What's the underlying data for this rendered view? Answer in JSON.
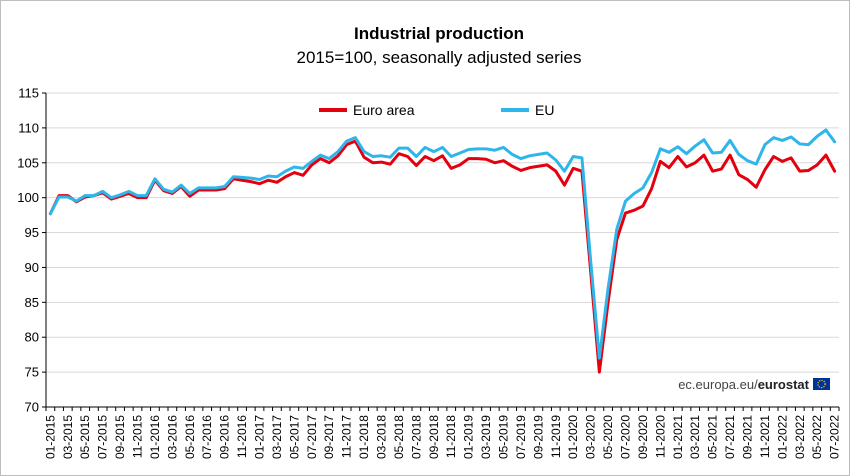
{
  "chart_data": {
    "type": "line",
    "title": "Industrial production",
    "subtitle": "2015=100, seasonally adjusted series",
    "ylim": [
      70,
      115
    ],
    "yticks": [
      70,
      75,
      80,
      85,
      90,
      95,
      100,
      105,
      110,
      115
    ],
    "grid": true,
    "legend": "top-center",
    "credit_prefix": "ec.europa.eu/",
    "credit_brand": "eurostat",
    "x": [
      "01-2015",
      "02-2015",
      "03-2015",
      "04-2015",
      "05-2015",
      "06-2015",
      "07-2015",
      "08-2015",
      "09-2015",
      "10-2015",
      "11-2015",
      "12-2015",
      "01-2016",
      "02-2016",
      "03-2016",
      "04-2016",
      "05-2016",
      "06-2016",
      "07-2016",
      "08-2016",
      "09-2016",
      "10-2016",
      "11-2016",
      "12-2016",
      "01-2017",
      "02-2017",
      "03-2017",
      "04-2017",
      "05-2017",
      "06-2017",
      "07-2017",
      "08-2017",
      "09-2017",
      "10-2017",
      "11-2017",
      "12-2017",
      "01-2018",
      "02-2018",
      "03-2018",
      "04-2018",
      "05-2018",
      "06-2018",
      "07-2018",
      "08-2018",
      "09-2018",
      "10-2018",
      "11-2018",
      "12-2018",
      "01-2019",
      "02-2019",
      "03-2019",
      "04-2019",
      "05-2019",
      "06-2019",
      "07-2019",
      "08-2019",
      "09-2019",
      "10-2019",
      "11-2019",
      "12-2019",
      "01-2020",
      "02-2020",
      "03-2020",
      "04-2020",
      "05-2020",
      "06-2020",
      "07-2020",
      "08-2020",
      "09-2020",
      "10-2020",
      "11-2020",
      "12-2020",
      "01-2021",
      "02-2021",
      "03-2021",
      "04-2021",
      "05-2021",
      "06-2021",
      "07-2021",
      "08-2021",
      "09-2021",
      "10-2021",
      "11-2021",
      "12-2021",
      "01-2022",
      "02-2022",
      "03-2022",
      "04-2022",
      "05-2022",
      "06-2022",
      "07-2022"
    ],
    "xticks": [
      "01-2015",
      "03-2015",
      "05-2015",
      "07-2015",
      "09-2015",
      "11-2015",
      "01-2016",
      "03-2016",
      "05-2016",
      "07-2016",
      "09-2016",
      "11-2016",
      "01-2017",
      "03-2017",
      "05-2017",
      "07-2017",
      "09-2017",
      "11-2017",
      "01-2018",
      "03-2018",
      "05-2018",
      "07-2018",
      "09-2018",
      "11-2018",
      "01-2019",
      "03-2019",
      "05-2019",
      "07-2019",
      "09-2019",
      "11-2019",
      "01-2020",
      "03-2020",
      "05-2020",
      "07-2020",
      "09-2020",
      "11-2020",
      "01-2021",
      "03-2021",
      "05-2021",
      "07-2021",
      "09-2021",
      "11-2021",
      "01-2022",
      "03-2022",
      "05-2022",
      "07-2022"
    ],
    "series": [
      {
        "name": "Euro area",
        "color": "#e3000f",
        "values": [
          97.7,
          100.3,
          100.3,
          99.4,
          100.1,
          100.3,
          100.7,
          99.8,
          100.2,
          100.6,
          100.0,
          100.0,
          102.5,
          101.0,
          100.6,
          101.6,
          100.2,
          101.1,
          101.1,
          101.1,
          101.3,
          102.7,
          102.5,
          102.3,
          102.0,
          102.5,
          102.2,
          103.0,
          103.6,
          103.2,
          104.7,
          105.6,
          105.0,
          106.0,
          107.6,
          108.1,
          105.8,
          105.0,
          105.1,
          104.8,
          106.3,
          105.9,
          104.6,
          105.9,
          105.3,
          106.0,
          104.2,
          104.7,
          105.6,
          105.6,
          105.5,
          105.0,
          105.3,
          104.5,
          103.9,
          104.3,
          104.5,
          104.7,
          103.8,
          101.8,
          104.2,
          103.8,
          89.5,
          75.0,
          85.0,
          94.0,
          97.8,
          98.2,
          98.8,
          101.3,
          105.2,
          104.3,
          105.9,
          104.4,
          105.0,
          106.1,
          103.8,
          104.1,
          106.1,
          103.3,
          102.6,
          101.5,
          104.0,
          105.9,
          105.2,
          105.7,
          103.8,
          103.9,
          104.7,
          106.1,
          103.8
        ]
      },
      {
        "name": "EU",
        "color": "#2eb6ea",
        "values": [
          97.7,
          100.1,
          100.1,
          99.5,
          100.3,
          100.3,
          100.9,
          100.0,
          100.4,
          100.9,
          100.3,
          100.3,
          102.7,
          101.2,
          100.8,
          101.8,
          100.6,
          101.4,
          101.4,
          101.4,
          101.6,
          103.0,
          102.9,
          102.8,
          102.6,
          103.1,
          103.0,
          103.8,
          104.4,
          104.2,
          105.2,
          106.1,
          105.6,
          106.6,
          108.1,
          108.6,
          106.6,
          105.9,
          106.0,
          105.8,
          107.1,
          107.1,
          105.9,
          107.2,
          106.6,
          107.2,
          105.9,
          106.4,
          106.9,
          107.0,
          107.0,
          106.8,
          107.2,
          106.2,
          105.6,
          106.0,
          106.2,
          106.4,
          105.4,
          103.8,
          105.9,
          105.7,
          91.0,
          77.0,
          87.0,
          95.5,
          99.5,
          100.6,
          101.4,
          103.6,
          107.0,
          106.5,
          107.3,
          106.3,
          107.4,
          108.3,
          106.4,
          106.5,
          108.2,
          106.2,
          105.3,
          104.8,
          107.6,
          108.6,
          108.2,
          108.7,
          107.7,
          107.6,
          108.8,
          109.7,
          108.0
        ]
      }
    ]
  }
}
